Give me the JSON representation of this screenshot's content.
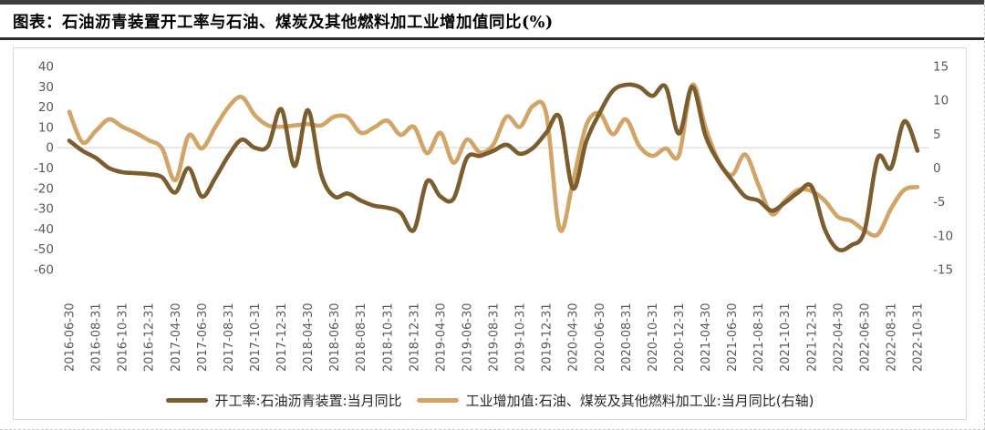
{
  "header": {
    "title": "图表：石油沥青装置开工率与石油、煤炭及其他燃料加工业增加值同比(%)"
  },
  "chart_data": {
    "type": "line",
    "title": "石油沥青装置开工率与石油、煤炭及其他燃料加工业增加值同比(%)",
    "grid": "single horizontal gridline at left-axis 0",
    "legend_position": "bottom",
    "x": [
      "2016-06",
      "2016-07",
      "2016-08",
      "2016-09",
      "2016-10",
      "2016-11",
      "2016-12",
      "2017-03",
      "2017-04",
      "2017-05",
      "2017-06",
      "2017-07",
      "2017-08",
      "2017-09",
      "2017-10",
      "2017-11",
      "2017-12",
      "2018-03",
      "2018-04",
      "2018-05",
      "2018-06",
      "2018-07",
      "2018-08",
      "2018-09",
      "2018-10",
      "2018-11",
      "2018-12",
      "2019-03",
      "2019-04",
      "2019-05",
      "2019-06",
      "2019-07",
      "2019-08",
      "2019-09",
      "2019-10",
      "2019-11",
      "2019-12",
      "2020-03",
      "2020-04",
      "2020-05",
      "2020-06",
      "2020-07",
      "2020-08",
      "2020-09",
      "2020-10",
      "2020-11",
      "2020-12",
      "2021-03",
      "2021-04",
      "2021-05",
      "2021-06",
      "2021-07",
      "2021-08",
      "2021-09",
      "2021-10",
      "2021-11",
      "2021-12",
      "2022-03",
      "2022-04",
      "2022-05",
      "2022-06",
      "2022-07",
      "2022-08",
      "2022-09",
      "2022-10"
    ],
    "x_tick_labels": [
      "2016-06-30",
      "2016-08-31",
      "2016-10-31",
      "2016-12-31",
      "2017-04-30",
      "2017-06-30",
      "2017-08-31",
      "2017-10-31",
      "2017-12-31",
      "2018-04-30",
      "2018-06-30",
      "2018-08-31",
      "2018-10-31",
      "2018-12-31",
      "2019-04-30",
      "2019-06-30",
      "2019-08-31",
      "2019-10-31",
      "2019-12-31",
      "2020-04-30",
      "2020-06-30",
      "2020-08-31",
      "2020-10-31",
      "2020-12-31",
      "2021-04-30",
      "2021-06-30",
      "2021-08-31",
      "2021-10-31",
      "2021-12-31",
      "2022-04-30",
      "2022-06-30",
      "2022-08-31",
      "2022-10-31"
    ],
    "left_axis": {
      "ticks": [
        40,
        30,
        20,
        10,
        0,
        -10,
        -20,
        -30,
        -40,
        -50,
        -60
      ],
      "max": 40,
      "min": -60
    },
    "right_axis": {
      "ticks": [
        15,
        10,
        5,
        0,
        -5,
        -10,
        -15
      ],
      "max": 15,
      "min": -15
    },
    "series": [
      {
        "name": "开工率:石油沥青装置:当月同比",
        "axis": "left",
        "color": "#7b5d2e",
        "values": [
          3.5,
          -1.5,
          -5,
          -10,
          -12,
          -12.5,
          -13,
          -14.5,
          -22,
          -10,
          -24,
          -15,
          -4,
          4,
          0,
          1,
          19,
          -9,
          18.5,
          -13,
          -24,
          -22.5,
          -26,
          -28.5,
          -29.5,
          -32,
          -40.5,
          -16.5,
          -24,
          -25,
          -5,
          -4,
          -1.5,
          1.5,
          -3,
          0,
          7.5,
          15,
          -20,
          3,
          17,
          28,
          31,
          30,
          25.5,
          30,
          7,
          30,
          6,
          -7,
          -16,
          -24,
          -26,
          -31,
          -27,
          -22,
          -19,
          -40,
          -50,
          -48,
          -41,
          -5,
          -10,
          13,
          -1.5
        ]
      },
      {
        "name": "工业增加值:石油、煤炭及其他燃料加工业:当月同比(右轴)",
        "axis": "right",
        "color": "#d2a567",
        "values": [
          8.3,
          3.8,
          5.5,
          7.2,
          6.1,
          5.2,
          4.1,
          2.9,
          -1.8,
          4.8,
          2.9,
          6,
          9,
          10.5,
          7.8,
          6.3,
          6.1,
          6.3,
          6.5,
          6.3,
          7.6,
          7.5,
          5.2,
          6,
          7,
          4.9,
          6.1,
          2.2,
          5.2,
          0.8,
          4.2,
          2.3,
          3.5,
          7.6,
          6.1,
          9.2,
          7.9,
          -9,
          -2,
          6.3,
          8.1,
          5,
          7.2,
          3.3,
          1.8,
          2.9,
          1.9,
          12.3,
          6,
          1,
          -1,
          2,
          -2.5,
          -6.8,
          -4.8,
          -3.2,
          -3.4,
          -4.8,
          -7.2,
          -7.8,
          -9.2,
          -9.8,
          -6,
          -3.2,
          -2.8
        ]
      }
    ]
  }
}
